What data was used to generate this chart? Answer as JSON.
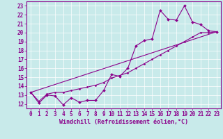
{
  "xlabel": "Windchill (Refroidissement éolien,°C)",
  "background_color": "#c8eaea",
  "grid_color": "#ffffff",
  "line_color": "#8b008b",
  "xlim": [
    -0.5,
    23.5
  ],
  "ylim": [
    11.5,
    23.5
  ],
  "xticks": [
    0,
    1,
    2,
    3,
    4,
    5,
    6,
    7,
    8,
    9,
    10,
    11,
    12,
    13,
    14,
    15,
    16,
    17,
    18,
    19,
    20,
    21,
    22,
    23
  ],
  "yticks": [
    12,
    13,
    14,
    15,
    16,
    17,
    18,
    19,
    20,
    21,
    22,
    23
  ],
  "line1_x": [
    0,
    1,
    2,
    3,
    4,
    5,
    6,
    7,
    8,
    9,
    10,
    11,
    12,
    13,
    14,
    15,
    16,
    17,
    18,
    19,
    20,
    21,
    22,
    23
  ],
  "line1_y": [
    13.3,
    12.1,
    13.0,
    12.9,
    11.9,
    12.7,
    12.2,
    12.4,
    12.4,
    13.5,
    15.3,
    15.1,
    16.0,
    18.5,
    19.1,
    19.3,
    22.5,
    21.5,
    21.4,
    23.0,
    21.2,
    20.9,
    20.2,
    20.1
  ],
  "line2_x": [
    0,
    23
  ],
  "line2_y": [
    13.3,
    20.1
  ],
  "line3_x": [
    0,
    1,
    2,
    3,
    4,
    5,
    6,
    7,
    8,
    9,
    10,
    11,
    12,
    13,
    14,
    15,
    16,
    17,
    18,
    19,
    20,
    21,
    22,
    23
  ],
  "line3_y": [
    13.3,
    12.3,
    13.1,
    13.3,
    13.3,
    13.5,
    13.7,
    13.9,
    14.1,
    14.4,
    14.9,
    15.2,
    15.5,
    16.0,
    16.5,
    17.0,
    17.5,
    18.0,
    18.5,
    19.0,
    19.5,
    20.0,
    20.0,
    20.1
  ],
  "tick_fontsize": 5.5,
  "xlabel_fontsize": 6.0
}
